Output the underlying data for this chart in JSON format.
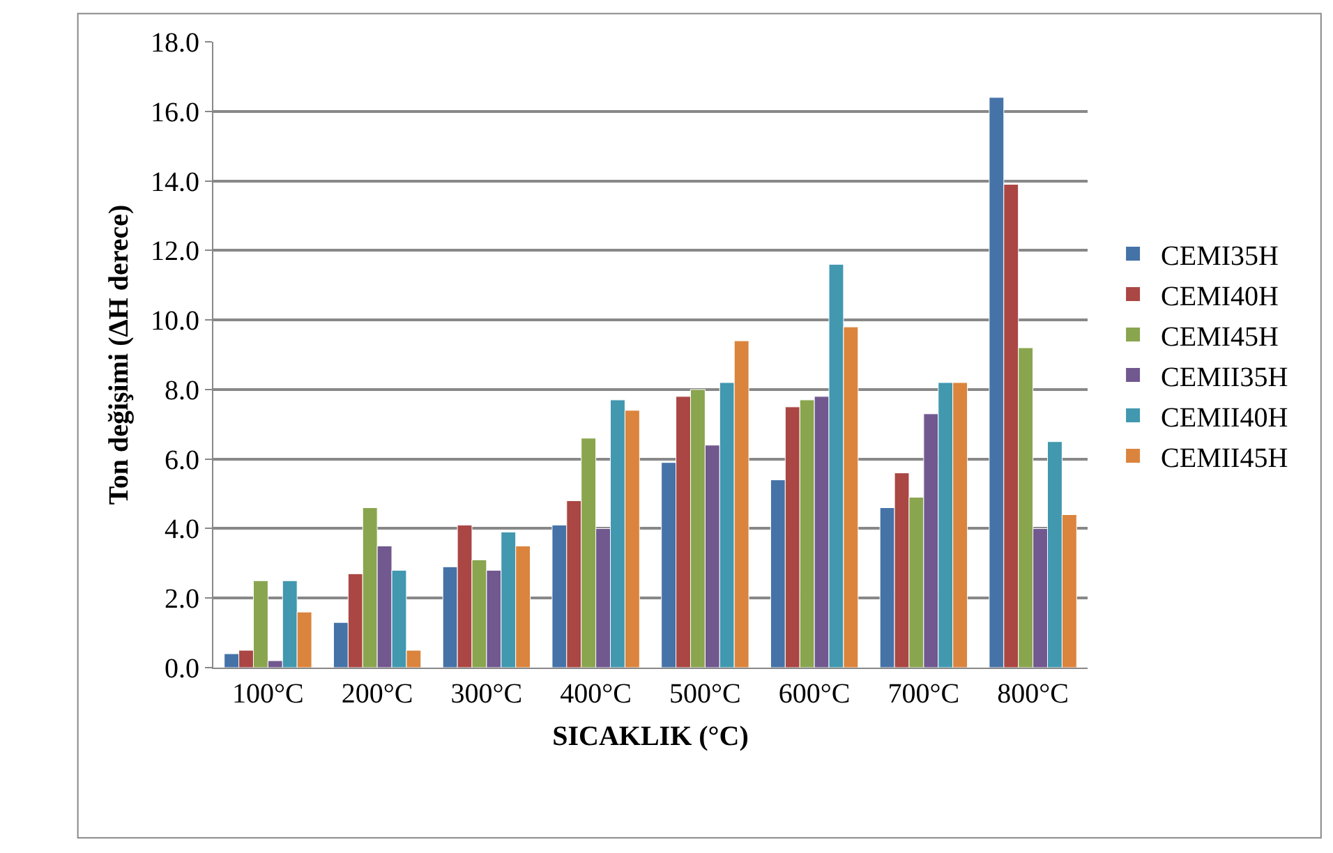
{
  "chart_data": {
    "type": "bar",
    "xlabel": "SICAKLIK (°C)",
    "ylabel": "Ton değişimi (ΔH derece)",
    "categories": [
      "100°C",
      "200°C",
      "300°C",
      "400°C",
      "500°C",
      "600°C",
      "700°C",
      "800°C"
    ],
    "series": [
      {
        "name": "CEMI35H",
        "color": "#4572a7",
        "values": [
          0.4,
          1.3,
          2.9,
          4.1,
          5.9,
          5.4,
          4.6,
          16.4
        ]
      },
      {
        "name": "CEMI40H",
        "color": "#aa4643",
        "values": [
          0.5,
          2.7,
          4.1,
          4.8,
          7.8,
          7.5,
          5.6,
          13.9
        ]
      },
      {
        "name": "CEMI45H",
        "color": "#89a54e",
        "values": [
          2.5,
          4.6,
          3.1,
          6.6,
          8.0,
          7.7,
          4.9,
          9.2
        ]
      },
      {
        "name": "CEMII35H",
        "color": "#71588f",
        "values": [
          0.2,
          3.5,
          2.8,
          4.0,
          6.4,
          7.8,
          7.3,
          4.0
        ]
      },
      {
        "name": "CEMII40H",
        "color": "#4198af",
        "values": [
          2.5,
          2.8,
          3.9,
          7.7,
          8.2,
          11.6,
          8.2,
          6.5
        ]
      },
      {
        "name": "CEMII45H",
        "color": "#db843d",
        "values": [
          1.6,
          0.5,
          3.5,
          7.4,
          9.4,
          9.8,
          8.2,
          4.4
        ]
      }
    ],
    "ylim": [
      0,
      18
    ],
    "yticks": [
      {
        "value": 0,
        "label": "0.0"
      },
      {
        "value": 2,
        "label": "2.0"
      },
      {
        "value": 4,
        "label": "4.0"
      },
      {
        "value": 6,
        "label": "6.0"
      },
      {
        "value": 8,
        "label": "8.0"
      },
      {
        "value": 10,
        "label": "10.0"
      },
      {
        "value": 12,
        "label": "12.0"
      },
      {
        "value": 14,
        "label": "14.0"
      },
      {
        "value": 16,
        "label": "16.0"
      },
      {
        "value": 18,
        "label": "18.0"
      }
    ],
    "grid": "y",
    "legend": "right"
  }
}
